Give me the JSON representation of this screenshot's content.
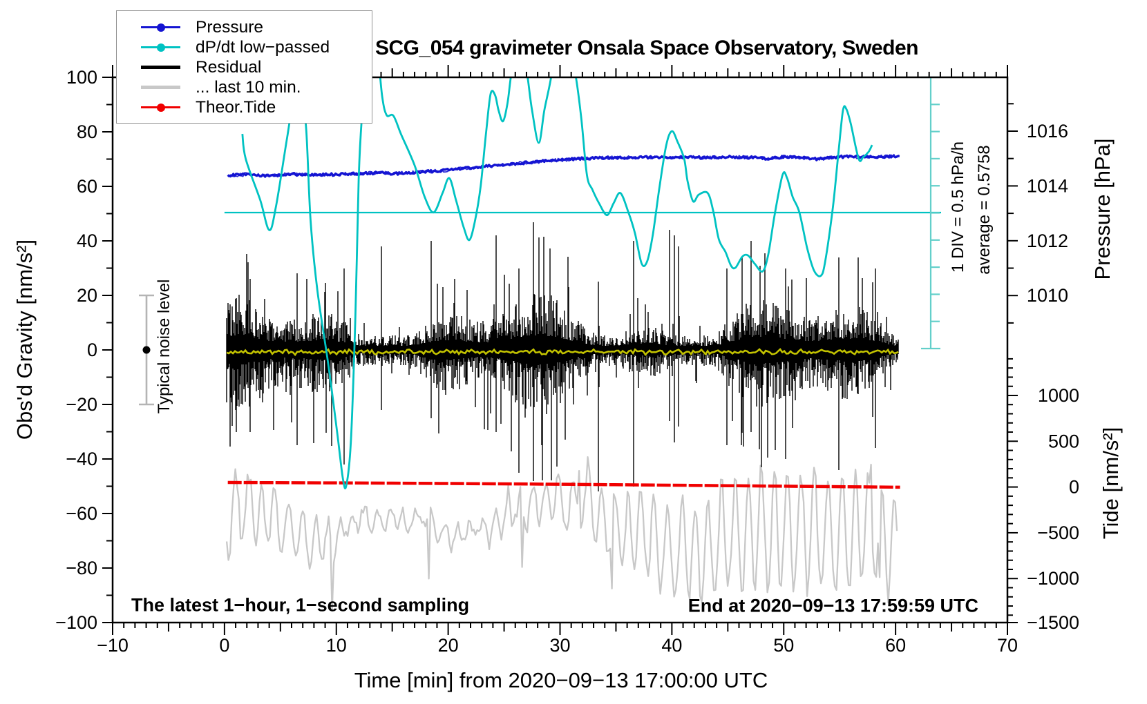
{
  "title": "SCG_054 gravimeter Onsala Space Observatory, Sweden",
  "notes": {
    "bottom_left": "The latest 1−hour, 1−second sampling",
    "bottom_right": "End at 2020−09−13 17:59:59 UTC",
    "noise_bar_label": "Typical noise level",
    "div_scale_label": "1 DIV = 0.5 hPa/h",
    "average_label": "average = 0.5758"
  },
  "axes": {
    "x": {
      "title": "Time [min] from 2020−09−13 17:00:00 UTC",
      "min": -10,
      "max": 70,
      "majors": [
        -10,
        0,
        10,
        20,
        30,
        40,
        50,
        60,
        70
      ],
      "labels": [
        "−10",
        "0",
        "10",
        "20",
        "30",
        "40",
        "50",
        "60",
        "70"
      ],
      "minor_step": 1,
      "medium_step": 5
    },
    "gravity": {
      "title": "Obs'd Gravity [nm/s²]",
      "min": -100,
      "max": 100,
      "majors": [
        100,
        80,
        60,
        40,
        20,
        0,
        -20,
        -40,
        -60,
        -80,
        -100
      ],
      "labels": [
        "100",
        "80",
        "60",
        "40",
        "20",
        "0",
        "−20",
        "−40",
        "−60",
        "−80",
        "−100"
      ],
      "minor_step": 10
    },
    "pressure": {
      "title": "Pressure [hPa]",
      "majors": [
        1016,
        1014,
        1012,
        1010
      ],
      "labels": [
        "1016",
        "1014",
        "1012",
        "1010"
      ],
      "minor_step": 1
    },
    "tide": {
      "title": "Tide [nm/s²]",
      "majors": [
        1000,
        500,
        0,
        -500,
        -1000,
        -1500
      ],
      "labels": [
        "1000",
        "500",
        "0",
        "−500",
        "−1000",
        "−1500"
      ],
      "minor_step": 100
    }
  },
  "legend": {
    "items": [
      {
        "label": "Pressure",
        "color": "#1414d2",
        "marker": true,
        "weight": 2.5
      },
      {
        "label": "dP/dt low−passed",
        "color": "#00c2c2",
        "marker": true,
        "weight": 2.5
      },
      {
        "label": "Residual",
        "color": "#000000",
        "marker": false,
        "weight": 4.5
      },
      {
        "label": "... last 10 min.",
        "color": "#c8c8c8",
        "marker": false,
        "weight": 4.5
      },
      {
        "label": "Theor.Tide",
        "color": "#f00000",
        "marker": true,
        "weight": 2.5
      }
    ]
  },
  "colors": {
    "pressure": "#1414d2",
    "dpdt": "#00c2c2",
    "dpdt_scalebar": "#63cfca",
    "residual": "#000000",
    "last10": "#c8c8c8",
    "tide": "#f00000",
    "residual_lowpass": "#c3c300",
    "noise_bar": "#b4b4b4",
    "frame": "#000000"
  },
  "chart_data": {
    "type": "line",
    "title": "SCG_054 gravimeter Onsala Space Observatory, Sweden",
    "xlabel": "Time [min] from 2020−09−13 17:00:00 UTC",
    "x_range": [
      -10,
      70
    ],
    "gravity_range": [
      -100,
      100
    ],
    "tide_range": [
      -1500,
      1500
    ],
    "average_dpdt_hpa_per_h": 0.5758,
    "div_size_hpa_per_h": 0.5,
    "noise_bar": {
      "label": "Typical noise level",
      "center_nm_s2": 0,
      "half_width_nm_s2": 20
    },
    "series": [
      {
        "name": "Pressure",
        "units": "hPa",
        "axis": "pressure",
        "style": "fuzzy-line",
        "points": [
          [
            0.3,
            1014.38
          ],
          [
            2,
            1014.42
          ],
          [
            4,
            1014.37
          ],
          [
            6,
            1014.43
          ],
          [
            8,
            1014.4
          ],
          [
            10,
            1014.42
          ],
          [
            12,
            1014.45
          ],
          [
            14,
            1014.48
          ],
          [
            15,
            1014.44
          ],
          [
            17,
            1014.5
          ],
          [
            19,
            1014.55
          ],
          [
            21,
            1014.62
          ],
          [
            23,
            1014.7
          ],
          [
            25,
            1014.78
          ],
          [
            27,
            1014.85
          ],
          [
            29,
            1014.92
          ],
          [
            31,
            1014.97
          ],
          [
            33,
            1015.02
          ],
          [
            35,
            1015.03
          ],
          [
            37,
            1015.04
          ],
          [
            39,
            1015.05
          ],
          [
            41,
            1015.05
          ],
          [
            43,
            1015.03
          ],
          [
            45,
            1015.06
          ],
          [
            47,
            1015.04
          ],
          [
            48.5,
            1015.0
          ],
          [
            50,
            1015.06
          ],
          [
            51.5,
            1015.03
          ],
          [
            53,
            1014.98
          ],
          [
            54.5,
            1015.05
          ],
          [
            56,
            1015.07
          ],
          [
            58,
            1015.05
          ],
          [
            60.4,
            1015.1
          ]
        ]
      },
      {
        "name": "dP/dt low−passed",
        "units": "hPa/h",
        "axis": "div-scale",
        "style": "smooth-line",
        "points": [
          [
            1.6,
            2.0
          ],
          [
            1.9,
            1.55
          ],
          [
            3.2,
            0.8
          ],
          [
            4.0,
            0.26
          ],
          [
            4.6,
            0.68
          ],
          [
            5.6,
            1.93
          ],
          [
            6.2,
            2.61
          ],
          [
            6.9,
            2.53
          ],
          [
            7.3,
            2.11
          ],
          [
            7.7,
            0.43
          ],
          [
            8.3,
            -0.82
          ],
          [
            9.3,
            -2.2
          ],
          [
            10.1,
            -3.45
          ],
          [
            10.6,
            -4.26
          ],
          [
            10.9,
            -4.36
          ],
          [
            11.3,
            -3.57
          ],
          [
            11.7,
            -1.32
          ],
          [
            12.0,
            1.18
          ],
          [
            12.3,
            2.36
          ],
          [
            12.6,
            2.93
          ],
          [
            13.0,
            3.6
          ],
          [
            13.6,
            3.6
          ],
          [
            14.1,
            2.68
          ],
          [
            14.5,
            2.34
          ],
          [
            15.1,
            2.33
          ],
          [
            15.8,
            1.99
          ],
          [
            17.0,
            1.43
          ],
          [
            17.9,
            0.86
          ],
          [
            18.7,
            0.58
          ],
          [
            19.5,
            0.93
          ],
          [
            20.1,
            1.2
          ],
          [
            20.7,
            0.8
          ],
          [
            21.4,
            0.3
          ],
          [
            21.9,
            0.08
          ],
          [
            22.4,
            0.43
          ],
          [
            22.9,
            1.05
          ],
          [
            23.4,
            2.05
          ],
          [
            23.8,
            2.73
          ],
          [
            24.2,
            2.7
          ],
          [
            24.5,
            2.43
          ],
          [
            24.9,
            2.23
          ],
          [
            25.3,
            2.55
          ],
          [
            25.6,
            3.03
          ],
          [
            26.1,
            3.7
          ],
          [
            26.6,
            3.7
          ],
          [
            27.1,
            3.03
          ],
          [
            27.5,
            2.43
          ],
          [
            28.1,
            1.84
          ],
          [
            28.6,
            2.43
          ],
          [
            29.2,
            3.03
          ],
          [
            29.7,
            3.8
          ],
          [
            30.6,
            3.85
          ],
          [
            31.4,
            3.05
          ],
          [
            31.9,
            2.28
          ],
          [
            32.4,
            1.26
          ],
          [
            32.9,
            0.99
          ],
          [
            33.5,
            0.74
          ],
          [
            34.2,
            0.53
          ],
          [
            34.8,
            0.75
          ],
          [
            35.4,
            0.93
          ],
          [
            36.1,
            0.59
          ],
          [
            36.7,
            0.2
          ],
          [
            37.3,
            -0.35
          ],
          [
            37.8,
            -0.3
          ],
          [
            38.3,
            0.18
          ],
          [
            38.9,
            1.05
          ],
          [
            39.5,
            1.8
          ],
          [
            40.0,
            2.05
          ],
          [
            40.5,
            1.86
          ],
          [
            41.1,
            1.55
          ],
          [
            41.4,
            1.15
          ],
          [
            41.9,
            0.78
          ],
          [
            42.4,
            0.9
          ],
          [
            43.2,
            0.93
          ],
          [
            43.7,
            0.6
          ],
          [
            44.2,
            0.09
          ],
          [
            44.8,
            -0.14
          ],
          [
            45.3,
            -0.39
          ],
          [
            45.7,
            -0.42
          ],
          [
            46.3,
            -0.22
          ],
          [
            46.8,
            -0.2
          ],
          [
            47.4,
            -0.35
          ],
          [
            48.1,
            -0.49
          ],
          [
            48.6,
            -0.2
          ],
          [
            49.2,
            0.55
          ],
          [
            49.9,
            1.26
          ],
          [
            50.3,
            1.2
          ],
          [
            50.8,
            0.86
          ],
          [
            51.4,
            0.58
          ],
          [
            52.1,
            -0.07
          ],
          [
            52.7,
            -0.47
          ],
          [
            53.3,
            -0.57
          ],
          [
            53.7,
            -0.32
          ],
          [
            54.4,
            0.68
          ],
          [
            54.9,
            1.68
          ],
          [
            55.3,
            2.43
          ],
          [
            55.6,
            2.45
          ],
          [
            56.0,
            2.18
          ],
          [
            56.7,
            1.55
          ],
          [
            57.1,
            1.58
          ],
          [
            57.6,
            1.68
          ],
          [
            57.9,
            1.8
          ]
        ]
      },
      {
        "name": "Theor.Tide",
        "units": "nm/s²",
        "axis": "tide",
        "style": "thick-dashed-line",
        "points": [
          [
            0.3,
            50
          ],
          [
            15,
            42
          ],
          [
            30,
            30
          ],
          [
            45,
            14
          ],
          [
            60.4,
            -2
          ]
        ]
      },
      {
        "name": "Residual",
        "units": "nm/s²",
        "axis": "gravity",
        "style": "noise",
        "t_range": [
          0.2,
          60.3
        ],
        "mean": 0,
        "typical_range": [
          -35,
          25
        ],
        "extremes": [
          -55,
          46
        ],
        "spikes": [
          [
            2.3,
            26,
            30
          ],
          [
            6.5,
            28,
            35
          ],
          [
            10.7,
            30,
            42
          ],
          [
            14.0,
            38,
            22
          ],
          [
            18.5,
            40,
            25
          ],
          [
            24.3,
            42,
            30
          ],
          [
            26.3,
            30,
            45
          ],
          [
            27.6,
            28,
            48
          ],
          [
            33.4,
            25,
            52
          ],
          [
            36.6,
            40,
            50
          ],
          [
            39.8,
            44,
            26
          ],
          [
            40.2,
            42,
            34
          ],
          [
            40.6,
            38,
            28
          ],
          [
            44.9,
            30,
            35
          ],
          [
            47.1,
            40,
            30
          ],
          [
            50.2,
            30,
            40
          ],
          [
            54.9,
            34,
            44
          ],
          [
            58.2,
            30,
            36
          ]
        ]
      },
      {
        "name": "... last 10 min.",
        "units": "nm/s²",
        "axis": "gravity",
        "style": "noise-wave",
        "t_range": [
          0.2,
          60.2
        ],
        "center": -62,
        "range": [
          -93,
          -28
        ]
      },
      {
        "name": "Residual low−passed (yellow)",
        "units": "nm/s²",
        "axis": "gravity",
        "style": "flat-wiggle",
        "value": 0
      }
    ]
  }
}
